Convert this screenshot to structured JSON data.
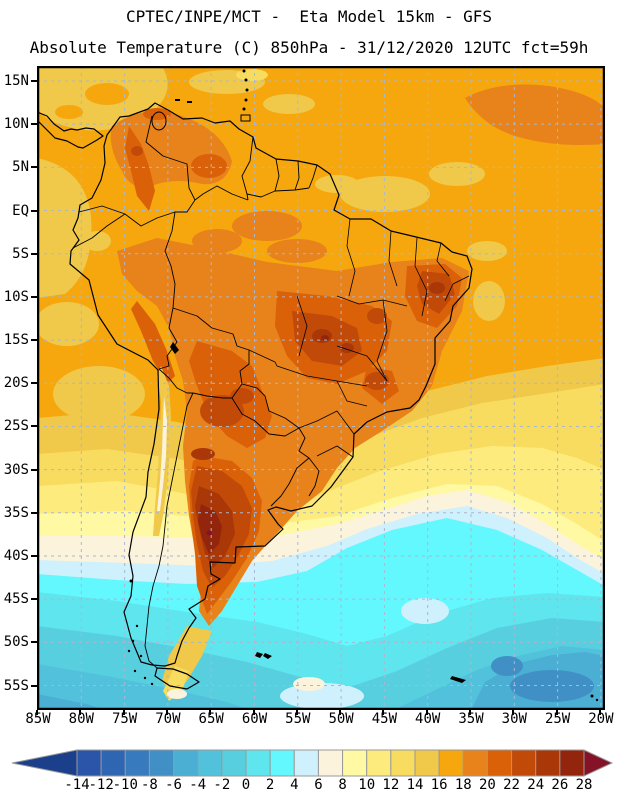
{
  "header": {
    "line1": "CPTEC/INPE/MCT -  Eta Model 15km - GFS",
    "line2": "Absolute Temperature (C) 850hPa - 31/12/2020 12UTC fct=59h"
  },
  "axes": {
    "lat": [
      "15N",
      "10N",
      "5N",
      "EQ",
      "5S",
      "10S",
      "15S",
      "20S",
      "25S",
      "30S",
      "35S",
      "40S",
      "45S",
      "50S",
      "55S"
    ],
    "lon": [
      "85W",
      "80W",
      "75W",
      "70W",
      "65W",
      "60W",
      "55W",
      "50W",
      "45W",
      "40W",
      "35W",
      "30W",
      "25W",
      "20W"
    ]
  },
  "colorbar": {
    "labels": [
      "-14",
      "-12",
      "-10",
      "-8",
      "-6",
      "-4",
      "-2",
      "0",
      "2",
      "4",
      "6",
      "8",
      "10",
      "12",
      "14",
      "16",
      "18",
      "20",
      "22",
      "24",
      "26",
      "28"
    ],
    "levels": [
      -14,
      -12,
      -10,
      -8,
      -6,
      -4,
      -2,
      0,
      2,
      4,
      6,
      8,
      10,
      12,
      14,
      16,
      18,
      20,
      22,
      24,
      26,
      28
    ],
    "colors": [
      "#1C3F8C",
      "#2B55A8",
      "#2E66B2",
      "#377BBE",
      "#4090C6",
      "#4BAFD4",
      "#52C2DC",
      "#57CFDF",
      "#5FE5EE",
      "#63F8FE",
      "#CFF0FD",
      "#FCF3DC",
      "#FEF9A2",
      "#FDEC7D",
      "#F8DC60",
      "#F0C84A",
      "#F5A70D",
      "#E8821A",
      "#DB6108",
      "#C24A08",
      "#A93708",
      "#93250C",
      "#851226"
    ],
    "cell_border": "#999999"
  },
  "colors": {
    "background": "#FFFFFF",
    "text": "#000000",
    "grid": "#A9B7CF",
    "outline": "#000000"
  }
}
